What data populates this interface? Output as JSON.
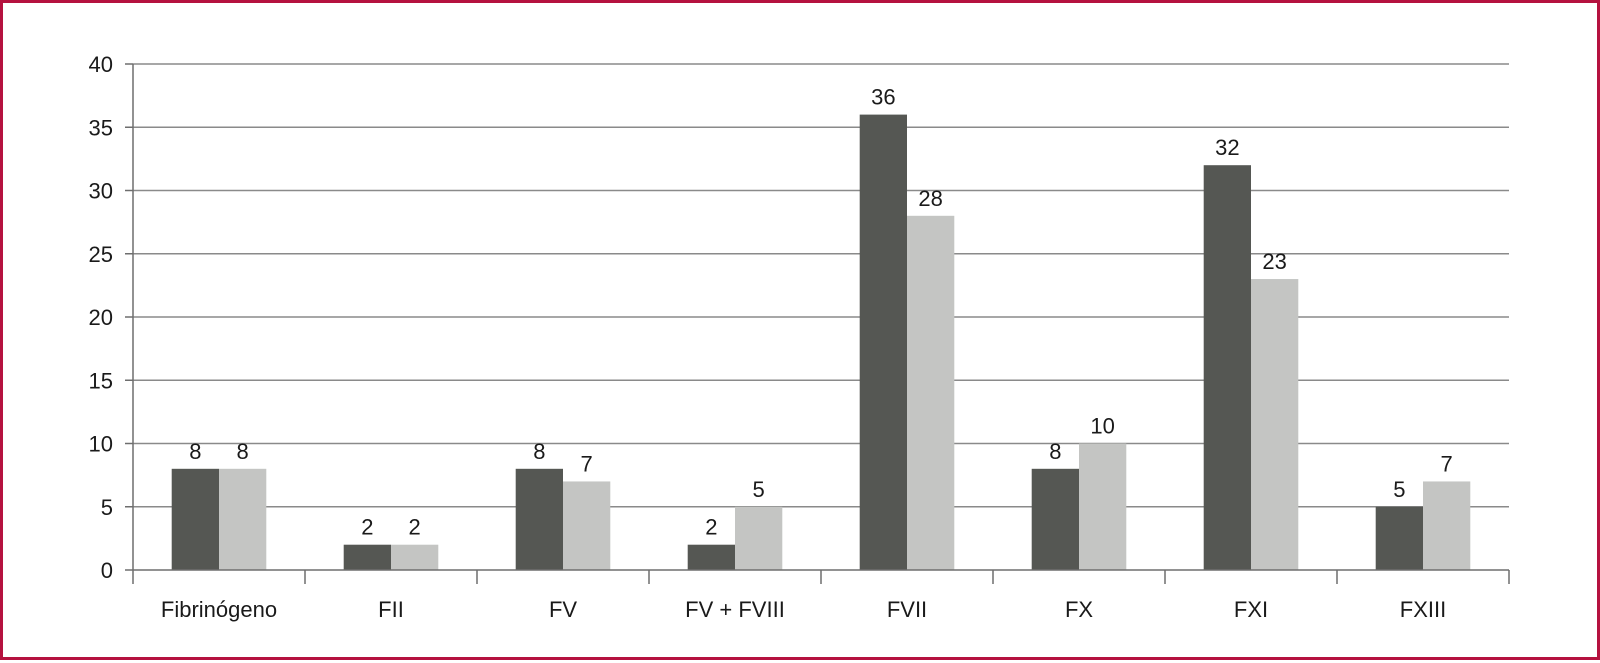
{
  "chart_data": {
    "type": "bar",
    "categories": [
      "Fibrinógeno",
      "FII",
      "FV",
      "FV + FVIII",
      "FVII",
      "FX",
      "FXI",
      "FXIII"
    ],
    "series": [
      {
        "values": [
          8,
          2,
          8,
          2,
          36,
          8,
          32,
          5
        ],
        "color": "#555753"
      },
      {
        "values": [
          8,
          2,
          7,
          5,
          28,
          10,
          23,
          7
        ],
        "color": "#c4c5c3"
      }
    ],
    "ylim": [
      0,
      40
    ],
    "yticks": [
      0,
      5,
      10,
      15,
      20,
      25,
      30,
      35,
      40
    ],
    "grid": true,
    "legend": "none",
    "title": "",
    "xlabel": "",
    "ylabel": ""
  },
  "colors": {
    "frame_border": "#b5123f",
    "gridline": "#8a8a8a",
    "axis": "#6e6e6e",
    "text": "#1a1a1a"
  }
}
